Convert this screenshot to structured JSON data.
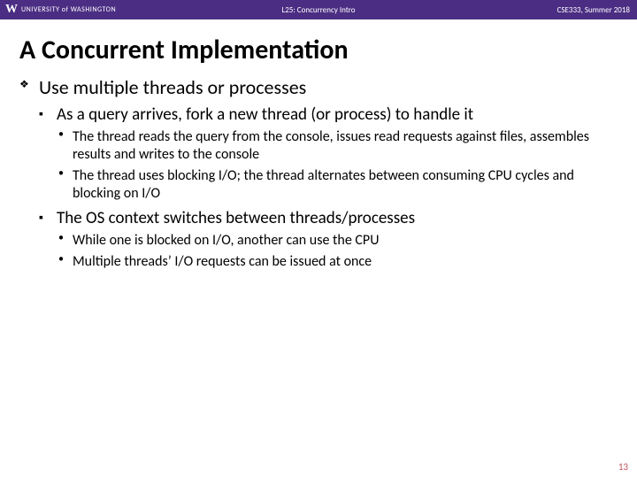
{
  "topbar": {
    "logo_mark": "W",
    "logo_text": "UNIVERSITY of WASHINGTON",
    "lecture": "L25:  Concurrency Intro",
    "course": "CSE333, Summer 2018",
    "background_color": "#4b2e83",
    "text_color": "#ffffff"
  },
  "slide": {
    "title": "A Concurrent Implementation",
    "title_fontsize": 30,
    "bullets": [
      {
        "text": "Use multiple threads or processes",
        "children": [
          {
            "text": "As a query arrives, fork a new thread (or process) to handle it",
            "children": [
              {
                "text": "The thread reads the query from the console, issues read requests against files, assembles results and writes to the console"
              },
              {
                "text": "The thread uses blocking I/O; the thread alternates between consuming CPU cycles and blocking on I/O"
              }
            ]
          },
          {
            "text": "The OS context switches between threads/processes",
            "children": [
              {
                "text": "While one is blocked on I/O, another can use the CPU"
              },
              {
                "text": "Multiple threads’ I/O requests can be issued at once"
              }
            ]
          }
        ]
      }
    ],
    "page_number": "13",
    "page_number_color": "#c1545b",
    "body_fontsize_lvl1": 22,
    "body_fontsize_lvl2": 19,
    "body_fontsize_lvl3": 16,
    "background_color": "#ffffff"
  }
}
